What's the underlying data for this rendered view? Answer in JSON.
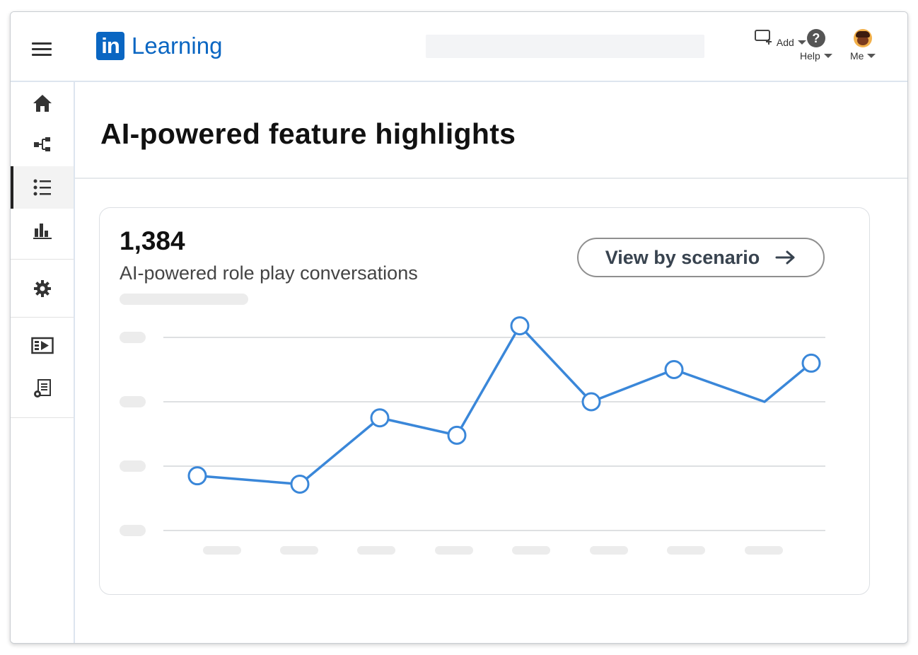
{
  "header": {
    "logo_mark": "in",
    "logo_text": "Learning",
    "actions": [
      {
        "label": "Add",
        "icon": "add-content-icon"
      },
      {
        "label": "Help",
        "icon": "help-icon"
      },
      {
        "label": "Me",
        "icon": "avatar"
      }
    ]
  },
  "sidebar": {
    "items": [
      {
        "icon": "home-icon"
      },
      {
        "icon": "org-structure-icon"
      },
      {
        "icon": "list-icon",
        "active": true
      },
      {
        "icon": "bar-chart-icon"
      },
      {
        "icon": "gear-icon"
      },
      {
        "icon": "video-icon"
      },
      {
        "icon": "settings-document-icon"
      }
    ]
  },
  "page": {
    "title": "AI-powered feature highlights"
  },
  "card": {
    "metric_value": "1,384",
    "metric_label": "AI-powered role play conversations",
    "button_label": "View by scenario",
    "button_icon": "arrow-right-icon"
  },
  "colors": {
    "brand": "#0a66c2",
    "line": "#3a87d9"
  },
  "chart_data": {
    "type": "line",
    "title": "",
    "xlabel": "",
    "ylabel": "",
    "x": [
      1,
      2,
      3,
      4,
      5,
      6,
      7,
      8,
      9
    ],
    "ylim": [
      0,
      3
    ],
    "grid": true,
    "series": [
      {
        "values": [
          0.85,
          0.72,
          1.75,
          1.48,
          3.18,
          2.0,
          2.5,
          2.0,
          2.6
        ],
        "markers": [
          true,
          true,
          true,
          true,
          true,
          true,
          true,
          false,
          true
        ]
      }
    ]
  }
}
